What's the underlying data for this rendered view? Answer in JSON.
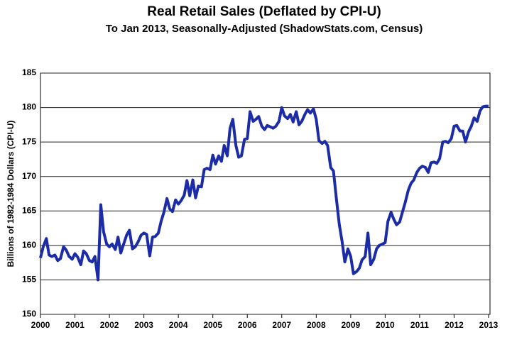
{
  "chart_data": {
    "type": "line",
    "title": "Real Retail Sales (Deflated by CPI-U)",
    "subtitle": "To Jan 2013, Seasonally-Adjusted (ShadowStats.com, Census)",
    "y_label": "Billions of 1982-1984 Dollars (CPI-U)",
    "x": [
      2000.0,
      2000.08,
      2000.17,
      2000.25,
      2000.33,
      2000.42,
      2000.5,
      2000.58,
      2000.67,
      2000.75,
      2000.83,
      2000.92,
      2001.0,
      2001.08,
      2001.17,
      2001.25,
      2001.33,
      2001.42,
      2001.5,
      2001.58,
      2001.67,
      2001.75,
      2001.83,
      2001.92,
      2002.0,
      2002.08,
      2002.17,
      2002.25,
      2002.33,
      2002.42,
      2002.5,
      2002.58,
      2002.67,
      2002.75,
      2002.83,
      2002.92,
      2003.0,
      2003.08,
      2003.17,
      2003.25,
      2003.33,
      2003.42,
      2003.5,
      2003.58,
      2003.67,
      2003.75,
      2003.83,
      2003.92,
      2004.0,
      2004.08,
      2004.17,
      2004.25,
      2004.33,
      2004.42,
      2004.5,
      2004.58,
      2004.67,
      2004.75,
      2004.83,
      2004.92,
      2005.0,
      2005.08,
      2005.17,
      2005.25,
      2005.33,
      2005.42,
      2005.5,
      2005.58,
      2005.67,
      2005.75,
      2005.83,
      2005.92,
      2006.0,
      2006.08,
      2006.17,
      2006.25,
      2006.33,
      2006.42,
      2006.5,
      2006.58,
      2006.67,
      2006.75,
      2006.83,
      2006.92,
      2007.0,
      2007.08,
      2007.17,
      2007.25,
      2007.33,
      2007.42,
      2007.5,
      2007.58,
      2007.67,
      2007.75,
      2007.83,
      2007.92,
      2008.0,
      2008.08,
      2008.17,
      2008.25,
      2008.33,
      2008.42,
      2008.5,
      2008.58,
      2008.67,
      2008.75,
      2008.83,
      2008.92,
      2009.0,
      2009.08,
      2009.17,
      2009.25,
      2009.33,
      2009.42,
      2009.5,
      2009.58,
      2009.67,
      2009.75,
      2009.83,
      2009.92,
      2010.0,
      2010.08,
      2010.17,
      2010.25,
      2010.33,
      2010.42,
      2010.5,
      2010.58,
      2010.67,
      2010.75,
      2010.83,
      2010.92,
      2011.0,
      2011.08,
      2011.17,
      2011.25,
      2011.33,
      2011.42,
      2011.5,
      2011.58,
      2011.67,
      2011.75,
      2011.83,
      2011.92,
      2012.0,
      2012.08,
      2012.17,
      2012.25,
      2012.33,
      2012.42,
      2012.5,
      2012.58,
      2012.67,
      2012.75,
      2012.83,
      2012.92,
      2013.0
    ],
    "series": [
      {
        "name": "Real Retail Sales",
        "color": "#1c2ba6",
        "values": [
          158.2,
          159.8,
          161.0,
          158.6,
          158.4,
          158.6,
          157.8,
          158.1,
          159.8,
          159.3,
          158.4,
          158.0,
          158.8,
          158.3,
          157.2,
          159.2,
          158.8,
          157.8,
          157.6,
          158.4,
          155.0,
          165.9,
          162.0,
          160.2,
          159.8,
          160.2,
          159.4,
          161.2,
          158.9,
          160.3,
          161.5,
          162.2,
          159.5,
          159.8,
          160.5,
          161.5,
          161.8,
          161.6,
          158.5,
          161.2,
          161.3,
          161.8,
          163.5,
          164.8,
          166.8,
          165.3,
          164.9,
          166.6,
          166.0,
          166.5,
          167.3,
          169.4,
          167.2,
          169.5,
          166.9,
          168.6,
          168.5,
          171.0,
          171.2,
          171.0,
          173.1,
          171.8,
          173.0,
          172.2,
          174.5,
          173.0,
          177.0,
          178.3,
          174.5,
          172.8,
          173.0,
          175.4,
          175.5,
          179.4,
          178.0,
          178.3,
          178.7,
          177.3,
          176.8,
          177.4,
          177.2,
          177.0,
          177.3,
          178.0,
          180.0,
          178.8,
          178.4,
          179.0,
          177.9,
          179.4,
          177.5,
          178.0,
          179.0,
          179.7,
          179.2,
          179.8,
          178.3,
          175.2,
          174.8,
          175.1,
          174.5,
          171.3,
          170.8,
          167.0,
          163.0,
          160.6,
          157.6,
          159.5,
          158.4,
          155.9,
          156.2,
          156.7,
          157.9,
          158.4,
          161.8,
          157.2,
          158.0,
          159.5,
          160.0,
          160.2,
          160.4,
          163.5,
          164.8,
          163.8,
          163.0,
          163.4,
          164.8,
          166.2,
          168.0,
          169.0,
          169.5,
          170.6,
          171.2,
          171.5,
          171.3,
          170.6,
          172.0,
          172.1,
          171.9,
          172.6,
          175.0,
          175.1,
          174.9,
          175.5,
          177.3,
          177.4,
          176.6,
          176.6,
          175.0,
          176.5,
          177.3,
          178.5,
          178.0,
          179.5,
          180.1,
          180.2,
          180.2
        ]
      }
    ],
    "xlim": [
      2000,
      2013
    ],
    "xticks": [
      2000,
      2001,
      2002,
      2003,
      2004,
      2005,
      2006,
      2007,
      2008,
      2009,
      2010,
      2011,
      2012,
      2013
    ],
    "ylim": [
      150,
      185
    ],
    "yticks": [
      150,
      155,
      160,
      165,
      170,
      175,
      180,
      185
    ],
    "grid": true
  }
}
